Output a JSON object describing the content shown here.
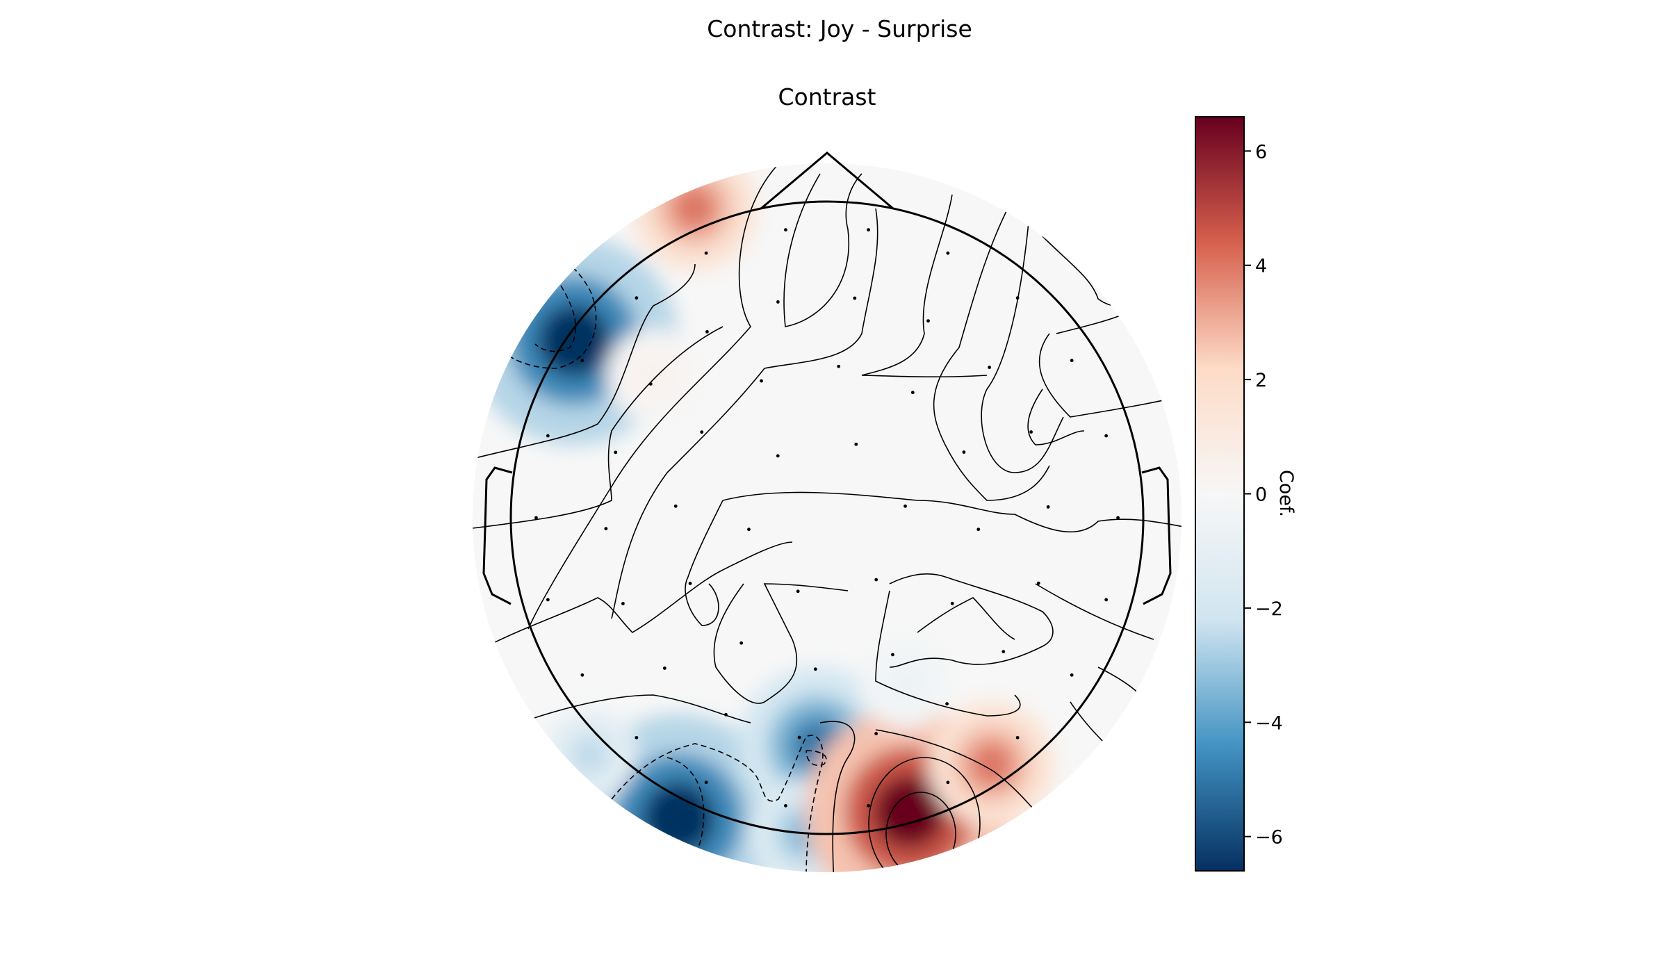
{
  "figure": {
    "suptitle": "Contrast: Joy - Surprise",
    "axes_title": "Contrast"
  },
  "colors": {
    "neg_strong": "#053061",
    "neg_mid": "#4393c3",
    "neg_light": "#d1e5f0",
    "neutral": "#f7f7f7",
    "pos_light": "#fddbc7",
    "pos_mid": "#d6604d",
    "pos_strong": "#67001f",
    "outline": "#000000"
  },
  "chart_data": {
    "type": "heatmap",
    "subtype": "EEG scalp topomap",
    "title": "Contrast",
    "colormap": "RdBu_r",
    "vmin": -6.6,
    "vmax": 6.6,
    "colorbar": {
      "label": "Coef.",
      "ticks": [
        6,
        4,
        2,
        0,
        -2,
        -4,
        -6
      ],
      "tick_labels": [
        "6",
        "4",
        "2",
        "0",
        "−2",
        "−4",
        "−6"
      ]
    },
    "blobs": [
      {
        "region": "left-frontal",
        "x": -0.8,
        "y": 0.56,
        "value": -6.6
      },
      {
        "region": "left-prefrontal",
        "x": -0.42,
        "y": 0.98,
        "value": 4.0
      },
      {
        "region": "left-occipital",
        "x": -0.47,
        "y": -0.95,
        "value": -6.6
      },
      {
        "region": "left-occipital-lateral",
        "x": -0.75,
        "y": -0.75,
        "value": -2.5
      },
      {
        "region": "mid-occipital",
        "x": -0.03,
        "y": -0.72,
        "value": -5.0
      },
      {
        "region": "occipital-strip",
        "x": -0.07,
        "y": -1.0,
        "value": -3.5
      },
      {
        "region": "right-occipital",
        "x": 0.26,
        "y": -0.93,
        "value": 6.6
      },
      {
        "region": "right-occipital-lateral",
        "x": 0.52,
        "y": -0.78,
        "value": 4.0
      },
      {
        "region": "right-parietal",
        "x": 0.25,
        "y": -0.52,
        "value": -0.6
      },
      {
        "region": "left-central",
        "x": -0.55,
        "y": 0.45,
        "value": 0.4
      }
    ]
  }
}
